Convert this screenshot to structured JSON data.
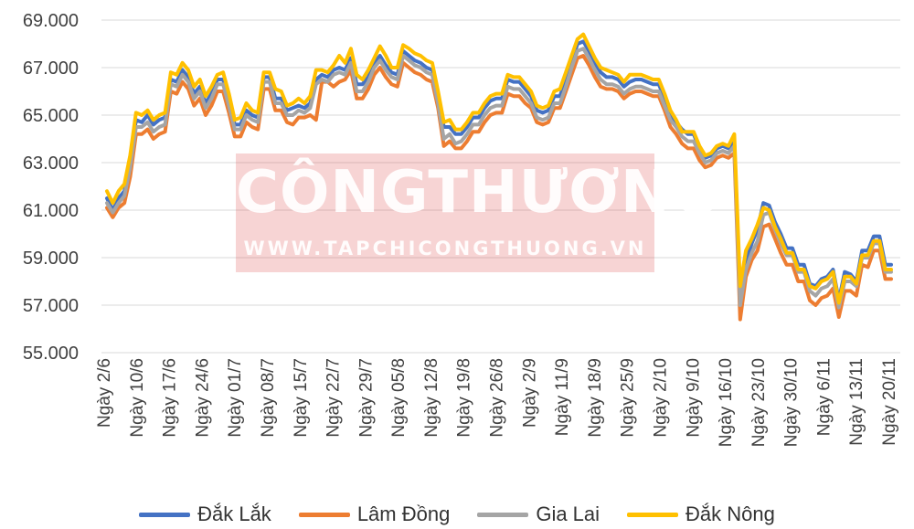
{
  "watermark": {
    "title": "CÔNGTHƯƠNG",
    "url": "WWW.TAPCHICONGTHUONG.VN"
  },
  "chart_data": {
    "type": "line",
    "ylim": [
      55000,
      69000
    ],
    "y_ticks": [
      "55.000",
      "57.000",
      "59.000",
      "61.000",
      "63.000",
      "65.000",
      "67.000",
      "69.000"
    ],
    "y_tick_values": [
      55000,
      57000,
      59000,
      61000,
      63000,
      65000,
      67000,
      69000
    ],
    "x_tick_labels": [
      "Ngày 2/6",
      "Ngày 10/6",
      "Ngày 17/6",
      "Ngày 24/6",
      "Ngày 01/7",
      "Ngày 08/7",
      "Ngày 15/7",
      "Ngày 22/7",
      "Ngày 29/7",
      "Ngày 05/8",
      "Ngày 12/8",
      "Ngày 19/8",
      "Ngày 26/8",
      "Ngày 2/9",
      "Ngày 11/9",
      "Ngày 18/9",
      "Ngày 25/9",
      "Ngày 2/10",
      "Ngày 9/10",
      "Ngày 16/10",
      "Ngày 23/10",
      "Ngày 30/10",
      "Ngày 6/11",
      "Ngày 13/11",
      "Ngày 20/11"
    ],
    "grid": "horizontal",
    "legend_position": "bottom",
    "series": [
      {
        "name": "Đắk Lắk",
        "color": "#4472C4",
        "values": [
          61500,
          61000,
          61500,
          61800,
          63000,
          64800,
          64700,
          65000,
          64600,
          64800,
          64900,
          66500,
          66400,
          66900,
          66600,
          65900,
          66200,
          65500,
          65900,
          66500,
          66500,
          65600,
          64600,
          64600,
          65200,
          65000,
          64900,
          66600,
          66600,
          65700,
          65700,
          65200,
          65300,
          65400,
          65300,
          65500,
          66500,
          66700,
          66600,
          66900,
          67000,
          66900,
          67400,
          66300,
          66300,
          66600,
          67200,
          67500,
          67100,
          66800,
          66700,
          67700,
          67500,
          67300,
          67200,
          67000,
          66900,
          65800,
          64500,
          64500,
          64200,
          64200,
          64500,
          64900,
          64900,
          65300,
          65600,
          65700,
          65700,
          66500,
          66400,
          66400,
          66100,
          65800,
          65200,
          65100,
          65200,
          65800,
          65800,
          66500,
          67200,
          68000,
          68100,
          67700,
          67200,
          66800,
          66600,
          66600,
          66500,
          66200,
          66400,
          66500,
          66500,
          66400,
          66300,
          66300,
          65700,
          65000,
          64700,
          64400,
          64200,
          64200,
          63600,
          63200,
          63300,
          63600,
          63700,
          63600,
          63900,
          57400,
          58800,
          59600,
          60200,
          61300,
          61200,
          60500,
          60000,
          59400,
          59400,
          58700,
          58700,
          57900,
          57800,
          58100,
          58200,
          58500,
          57200,
          58400,
          58300,
          58000,
          59300,
          59300,
          59900,
          59900,
          58700,
          58700
        ]
      },
      {
        "name": "Lâm Đồng",
        "color": "#ED7D31",
        "values": [
          61100,
          60700,
          61100,
          61300,
          62400,
          64200,
          64200,
          64400,
          64000,
          64200,
          64300,
          66000,
          65900,
          66400,
          66100,
          65400,
          65700,
          65000,
          65400,
          66000,
          66000,
          65100,
          64100,
          64100,
          64700,
          64500,
          64400,
          66100,
          66100,
          65200,
          65200,
          64700,
          64600,
          64900,
          64900,
          65000,
          64800,
          66400,
          66400,
          66200,
          66400,
          66500,
          66900,
          65700,
          65700,
          66100,
          66700,
          67000,
          66600,
          66300,
          66200,
          67200,
          67000,
          66800,
          66700,
          66500,
          66400,
          65300,
          63700,
          63900,
          63600,
          63600,
          63900,
          64300,
          64300,
          64700,
          65000,
          65100,
          65100,
          65900,
          65800,
          65800,
          65500,
          65300,
          64700,
          64600,
          64700,
          65300,
          65300,
          66000,
          66700,
          67400,
          67500,
          67100,
          66600,
          66200,
          66100,
          66100,
          66000,
          65700,
          65900,
          66000,
          66000,
          65900,
          65800,
          65800,
          65200,
          64500,
          64200,
          63800,
          63600,
          63600,
          63100,
          62800,
          62900,
          63200,
          63300,
          63200,
          63400,
          56400,
          58200,
          58900,
          59300,
          60300,
          60400,
          59800,
          59200,
          58700,
          58700,
          58000,
          58000,
          57200,
          57000,
          57300,
          57400,
          57700,
          56500,
          57600,
          57600,
          57400,
          58700,
          58600,
          59300,
          59300,
          58100,
          58100
        ]
      },
      {
        "name": "Gia Lai",
        "color": "#A5A5A5",
        "values": [
          61300,
          60900,
          61300,
          61600,
          62800,
          64500,
          64500,
          64700,
          64300,
          64500,
          64600,
          66300,
          66200,
          66700,
          66400,
          65700,
          66000,
          65300,
          65700,
          66300,
          66300,
          65400,
          64400,
          64400,
          65000,
          64800,
          64700,
          66400,
          66400,
          65500,
          65500,
          65000,
          65000,
          65200,
          65100,
          65300,
          66300,
          66500,
          66400,
          66700,
          66800,
          66700,
          67200,
          66000,
          66000,
          66400,
          67000,
          67300,
          66900,
          66600,
          66500,
          67500,
          67300,
          67100,
          67000,
          66800,
          66700,
          65500,
          64000,
          64200,
          63800,
          63900,
          64200,
          64600,
          64600,
          65000,
          65300,
          65400,
          65400,
          66200,
          66100,
          66100,
          65800,
          65500,
          64900,
          64800,
          64900,
          65500,
          65500,
          66200,
          67000,
          67700,
          67800,
          67400,
          66900,
          66500,
          66300,
          66300,
          66200,
          65900,
          66100,
          66200,
          66200,
          66100,
          66000,
          66000,
          65400,
          64800,
          64500,
          64100,
          63900,
          63900,
          63400,
          63000,
          63100,
          63400,
          63500,
          63400,
          63700,
          57000,
          58500,
          59200,
          59700,
          60800,
          60900,
          60200,
          59600,
          59100,
          59100,
          58400,
          58400,
          57600,
          57400,
          57700,
          57800,
          58100,
          56900,
          58000,
          58000,
          57800,
          59000,
          59000,
          59600,
          59600,
          58400,
          58400
        ]
      },
      {
        "name": "Đắk Nông",
        "color": "#FFC000",
        "values": [
          61800,
          61300,
          61800,
          62100,
          63300,
          65100,
          65000,
          65200,
          64800,
          65000,
          65100,
          66800,
          66700,
          67200,
          66900,
          66200,
          66500,
          65800,
          66200,
          66700,
          66800,
          65900,
          64800,
          64900,
          65500,
          65200,
          65100,
          66800,
          66800,
          66100,
          66000,
          65400,
          65500,
          65700,
          65500,
          65800,
          66900,
          66900,
          66800,
          67100,
          67500,
          67200,
          67800,
          66700,
          66500,
          66900,
          67400,
          67900,
          67500,
          67000,
          67000,
          67950,
          67800,
          67600,
          67500,
          67300,
          67200,
          66000,
          64700,
          64800,
          64400,
          64400,
          64700,
          65100,
          65100,
          65500,
          65800,
          65900,
          65900,
          66700,
          66600,
          66600,
          66300,
          66000,
          65400,
          65300,
          65400,
          66000,
          66100,
          66800,
          67500,
          68200,
          68400,
          67900,
          67400,
          67000,
          66900,
          66800,
          66700,
          66400,
          66700,
          66700,
          66700,
          66600,
          66500,
          66500,
          65900,
          65200,
          64800,
          64300,
          64300,
          64300,
          63700,
          63300,
          63400,
          63700,
          63800,
          63700,
          64200,
          57800,
          59300,
          59800,
          60400,
          61100,
          61000,
          60300,
          59800,
          59200,
          59200,
          58500,
          58500,
          57800,
          57700,
          58000,
          58100,
          58400,
          57100,
          58200,
          58200,
          57900,
          59100,
          59100,
          59700,
          59700,
          58500,
          58500
        ]
      }
    ]
  }
}
